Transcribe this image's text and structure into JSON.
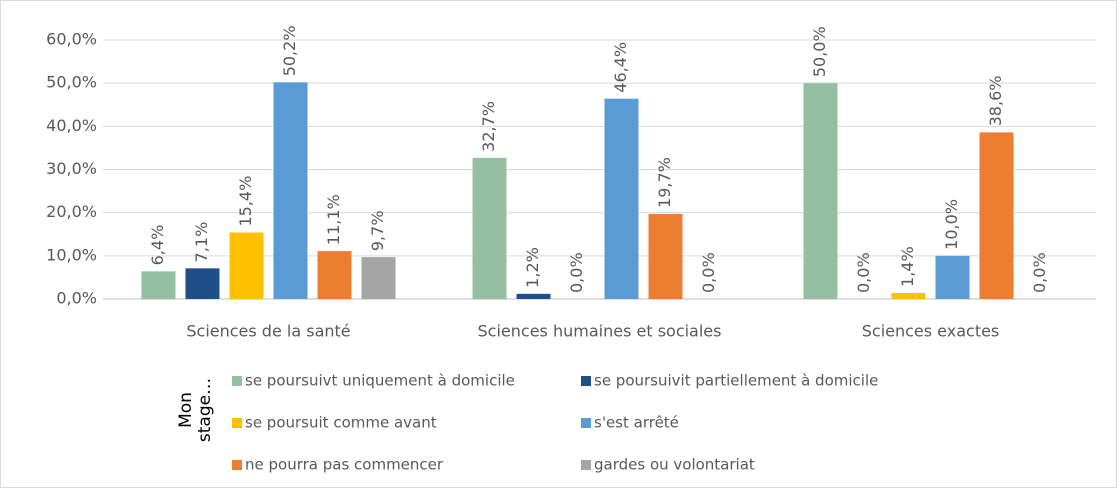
{
  "chart_data": {
    "type": "bar",
    "categories": [
      "Sciences de la santé",
      "Sciences humaines et sociales",
      "Sciences exactes"
    ],
    "series": [
      {
        "name": "se poursuivt uniquement à domicile",
        "color": "#95bfa2",
        "values": [
          6.4,
          32.7,
          50.0
        ],
        "value_labels": [
          "6,4%",
          "32,7%",
          "50,0%"
        ]
      },
      {
        "name": "se poursuivit partiellement à domicile",
        "color": "#1f4e89",
        "values": [
          7.1,
          1.2,
          0.0
        ],
        "value_labels": [
          "7,1%",
          "1,2%",
          "0,0%"
        ]
      },
      {
        "name": "se poursuit comme avant",
        "color": "#ffc000",
        "values": [
          15.4,
          0.0,
          1.4
        ],
        "value_labels": [
          "15,4%",
          "0,0%",
          "1,4%"
        ]
      },
      {
        "name": "s'est arrêté",
        "color": "#5b9bd5",
        "values": [
          50.2,
          46.4,
          10.0
        ],
        "value_labels": [
          "50,2%",
          "46,4%",
          "10,0%"
        ]
      },
      {
        "name": "ne pourra pas commencer",
        "color": "#ed7d31",
        "values": [
          11.1,
          19.7,
          38.6
        ],
        "value_labels": [
          "11,1%",
          "19,7%",
          "38,6%"
        ]
      },
      {
        "name": "gardes ou volontariat",
        "color": "#a5a5a5",
        "values": [
          9.7,
          0.0,
          0.0
        ],
        "value_labels": [
          "9,7%",
          "0,0%",
          "0,0%"
        ]
      }
    ],
    "legend_title": [
      "Mon",
      "stage…"
    ],
    "ylim": [
      0,
      60
    ],
    "yticks": [
      {
        "value": 0,
        "label": "0,0%"
      },
      {
        "value": 10,
        "label": "10,0%"
      },
      {
        "value": 20,
        "label": "20,0%"
      },
      {
        "value": 30,
        "label": "30,0%"
      },
      {
        "value": 40,
        "label": "40,0%"
      },
      {
        "value": 50,
        "label": "50,0%"
      },
      {
        "value": 60,
        "label": "60,0%"
      }
    ],
    "grid": true
  }
}
